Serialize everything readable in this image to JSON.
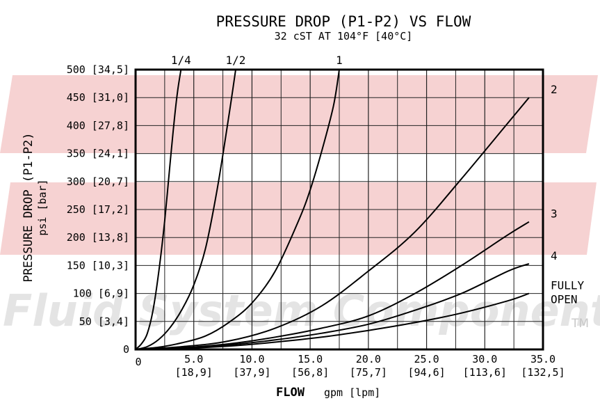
{
  "chart_data": {
    "type": "line",
    "title": "PRESSURE DROP (P1-P2) VS FLOW",
    "subtitle": "32 cST AT 104°F [40°C]",
    "ylabel": "PRESSURE DROP (P1-P2)",
    "ylabel_units": "psi [bar]",
    "xlabel_bold": "FLOW",
    "xlabel_units": "gpm [lpm]",
    "xlim": [
      0,
      35
    ],
    "ylim": [
      0,
      500
    ],
    "grid": true,
    "x_ticks": [
      {
        "value": 0,
        "label": "0",
        "sub": ""
      },
      {
        "value": 5,
        "label": "5.0",
        "sub": "[18,9]"
      },
      {
        "value": 10,
        "label": "10.0",
        "sub": "[37,9]"
      },
      {
        "value": 15,
        "label": "15.0",
        "sub": "[56,8]"
      },
      {
        "value": 20,
        "label": "20.0",
        "sub": "[75,7]"
      },
      {
        "value": 25,
        "label": "25.0",
        "sub": "[94,6]"
      },
      {
        "value": 30,
        "label": "30.0",
        "sub": "[113,6]"
      },
      {
        "value": 35,
        "label": "35.0",
        "sub": "[132,5]"
      }
    ],
    "y_ticks": [
      {
        "value": 0,
        "label": "0"
      },
      {
        "value": 50,
        "label": "50 [3,4]"
      },
      {
        "value": 100,
        "label": "100 [6,9]"
      },
      {
        "value": 150,
        "label": "150 [10,3]"
      },
      {
        "value": 200,
        "label": "200 [13,8]"
      },
      {
        "value": 250,
        "label": "250 [17,2]"
      },
      {
        "value": 300,
        "label": "300 [20,7]"
      },
      {
        "value": 350,
        "label": "350 [24,1]"
      },
      {
        "value": 400,
        "label": "400 [27,8]"
      },
      {
        "value": 450,
        "label": "450 [31,0]"
      },
      {
        "value": 500,
        "label": "500 [34,5]"
      }
    ],
    "series": [
      {
        "name": "1/4",
        "x": [
          0,
          0.5,
          1.0,
          1.5,
          2.0,
          2.5,
          3.0,
          3.3,
          3.6,
          3.9
        ],
        "y": [
          0,
          10,
          28,
          70,
          140,
          230,
          340,
          405,
          460,
          500
        ]
      },
      {
        "name": "1/2",
        "x": [
          0,
          1,
          2,
          3,
          4,
          5,
          6,
          7,
          8,
          8.6
        ],
        "y": [
          0,
          5,
          18,
          40,
          72,
          115,
          180,
          285,
          415,
          500
        ]
      },
      {
        "name": "1",
        "x": [
          0,
          2,
          4,
          6,
          8,
          10,
          12,
          14,
          15,
          16,
          17,
          17.5
        ],
        "y": [
          0,
          4,
          12,
          24,
          48,
          83,
          140,
          230,
          285,
          355,
          435,
          500
        ]
      },
      {
        "name": "2",
        "x": [
          0,
          4,
          8,
          12,
          16,
          20,
          24,
          28,
          32,
          33.8
        ],
        "y": [
          0,
          5,
          15,
          38,
          78,
          140,
          210,
          305,
          405,
          450
        ]
      },
      {
        "name": "3",
        "x": [
          0,
          4,
          8,
          12,
          16,
          20,
          24,
          28,
          32,
          33.8
        ],
        "y": [
          0,
          3,
          10,
          22,
          38,
          60,
          100,
          150,
          205,
          228
        ]
      },
      {
        "name": "4",
        "x": [
          0,
          4,
          8,
          12,
          16,
          20,
          24,
          28,
          32,
          33.8
        ],
        "y": [
          0,
          2,
          8,
          17,
          29,
          45,
          70,
          100,
          140,
          153
        ]
      },
      {
        "name": "FULLY OPEN",
        "x": [
          0,
          4,
          8,
          12,
          16,
          20,
          24,
          28,
          32,
          33.8
        ],
        "y": [
          0,
          2,
          6,
          13,
          22,
          34,
          48,
          65,
          87,
          100
        ]
      }
    ]
  },
  "watermark": {
    "text": "Fluid System Components",
    "tm": "TM",
    "color": "#e4e4e4",
    "accent_color": "#f5cccc"
  }
}
